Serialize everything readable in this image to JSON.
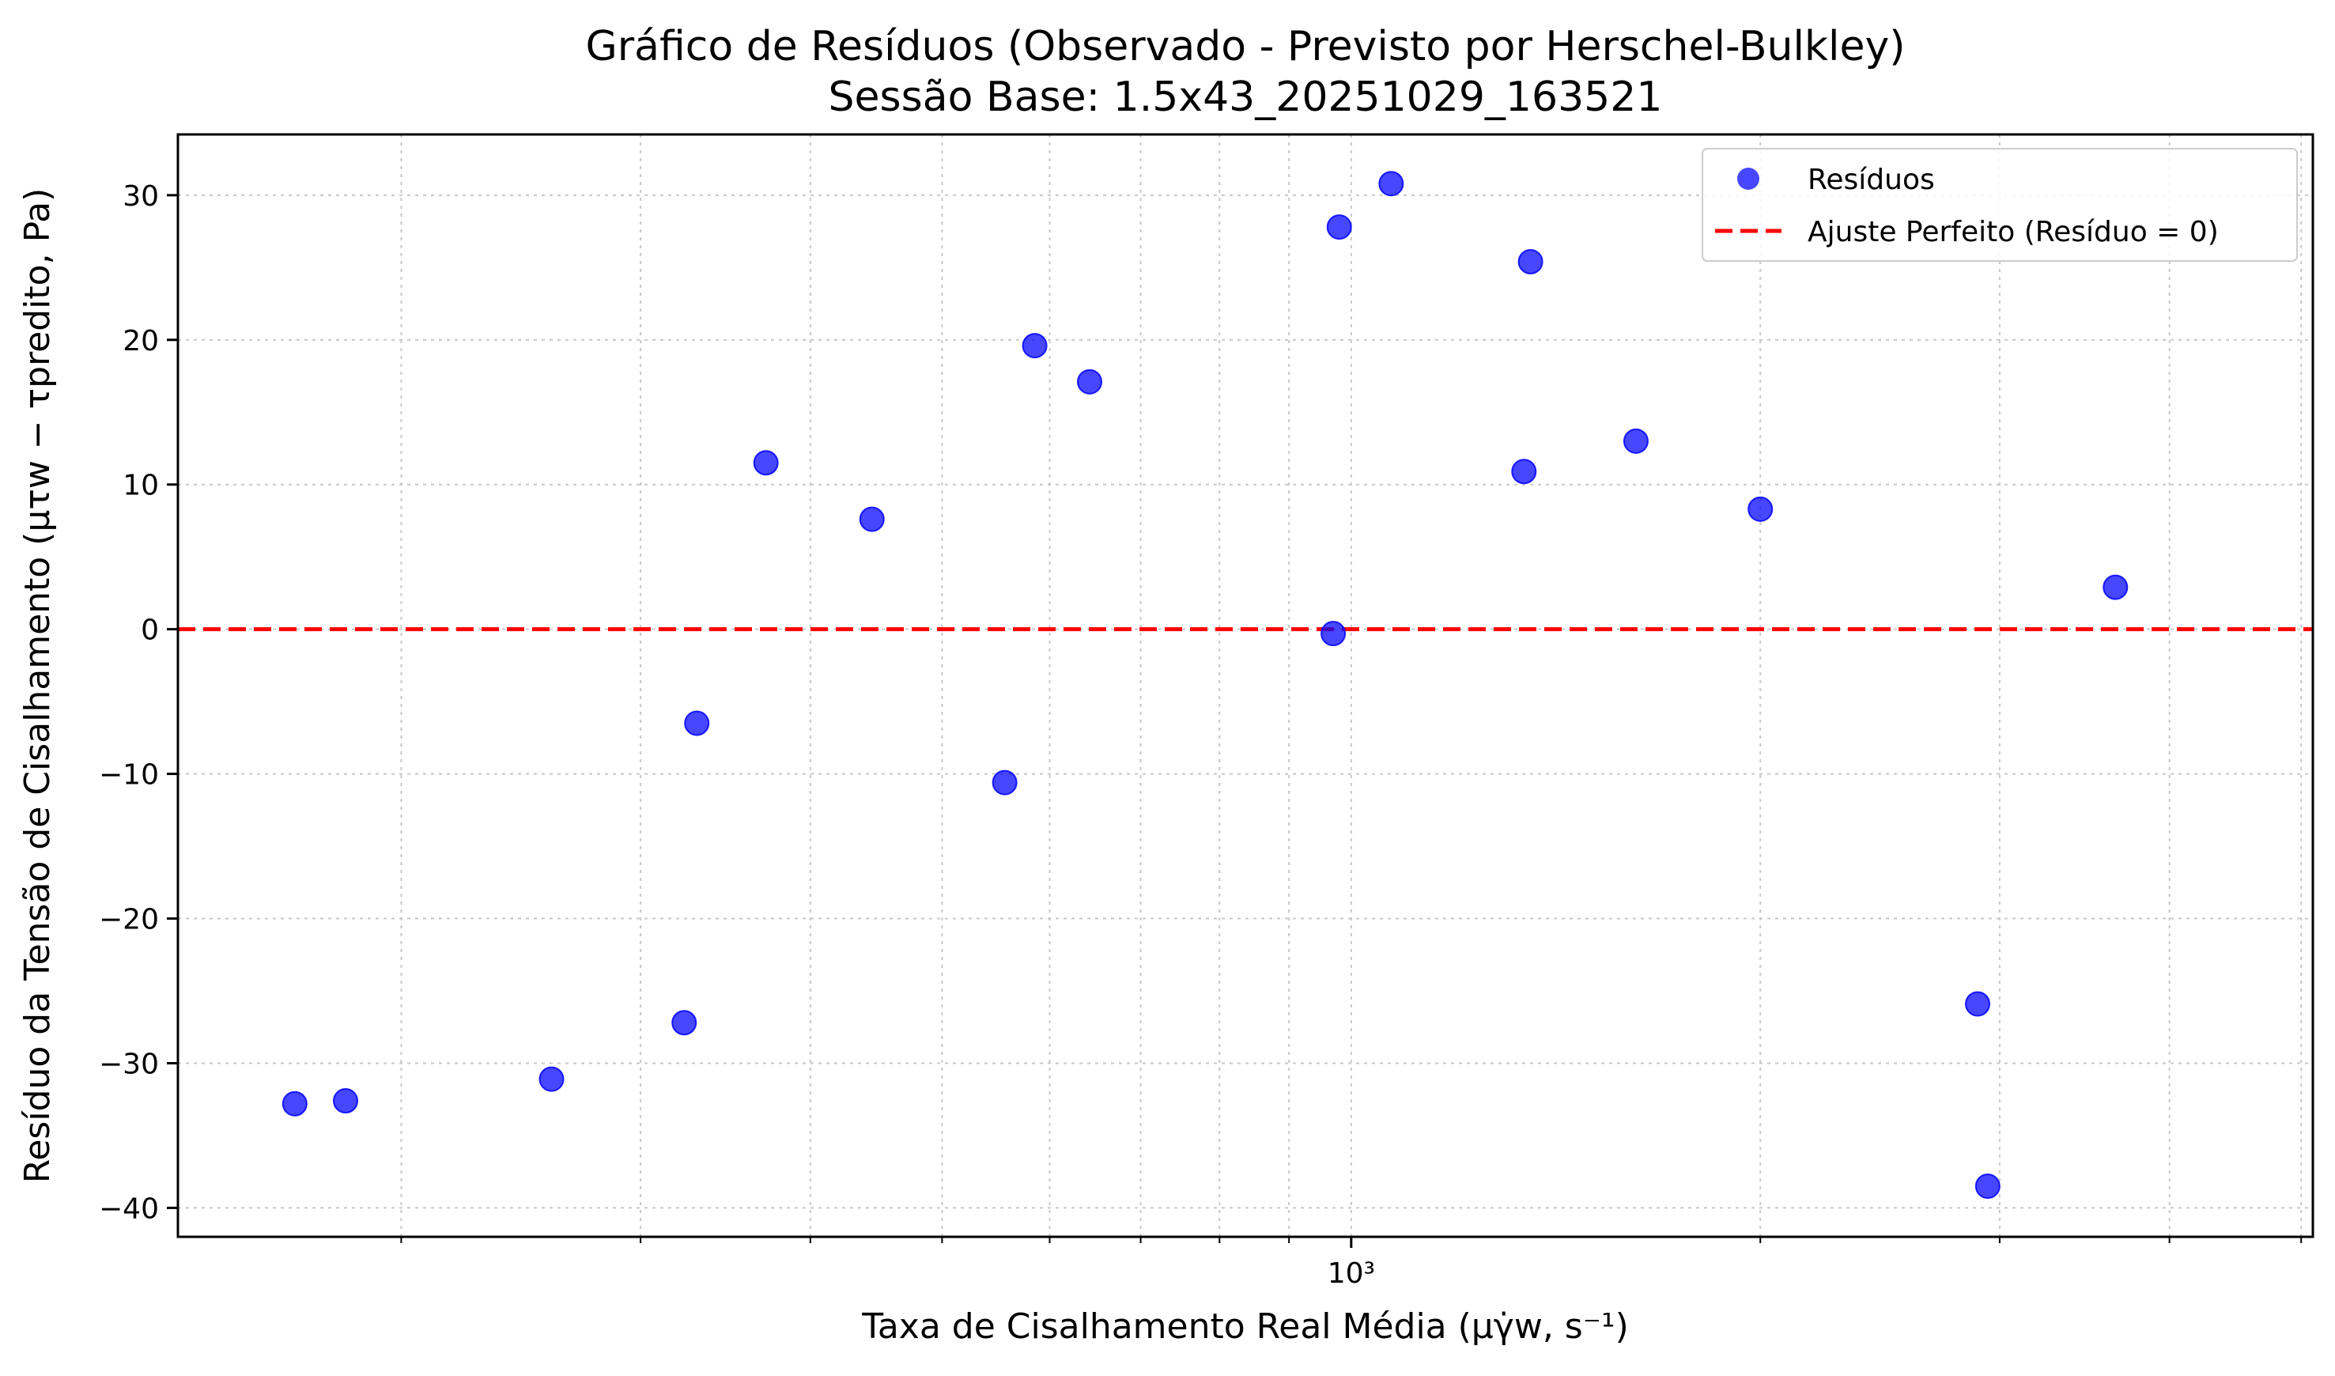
{
  "chart_data": {
    "type": "scatter",
    "title": "Gráfico de Resíduos (Observado - Previsto por Herschel-Bulkley)",
    "subtitle": "Sessão Base: 1.5x43_20251029_163521",
    "xlabel": "Taxa de Cisalhamento Real Média (μγ̇w, s⁻¹)",
    "ylabel": "Resíduo da Tensão de Cisalhamento (μτw − τpredito, Pa)",
    "x_scale": "log",
    "xlim": [
      137,
      5100
    ],
    "ylim": [
      -42,
      34.2
    ],
    "x_tick_labels": [
      "10³"
    ],
    "y_ticks": [
      30,
      20,
      10,
      0,
      -10,
      -20,
      -30,
      -40
    ],
    "y_tick_labels": [
      "30",
      "20",
      "10",
      "0",
      "−10",
      "−20",
      "−30",
      "−40"
    ],
    "grid": true,
    "legend_position": "top-right",
    "series": [
      {
        "name": "Resíduos",
        "color": "#0000ff",
        "marker": "circle",
        "points": [
          [
            167,
            -32.8
          ],
          [
            182,
            -32.6
          ],
          [
            258,
            -31.1
          ],
          [
            323,
            -27.2
          ],
          [
            330,
            -6.5
          ],
          [
            371,
            11.5
          ],
          [
            444,
            7.6
          ],
          [
            556,
            -10.6
          ],
          [
            585,
            19.6
          ],
          [
            642,
            17.1
          ],
          [
            970,
            -0.3
          ],
          [
            980,
            27.8
          ],
          [
            1070,
            30.8
          ],
          [
            1340,
            10.9
          ],
          [
            1355,
            25.4
          ],
          [
            1620,
            13.0
          ],
          [
            2000,
            8.3
          ],
          [
            2890,
            -25.9
          ],
          [
            2940,
            -38.5
          ],
          [
            3650,
            2.9
          ]
        ]
      },
      {
        "name": "Ajuste Perfeito (Resíduo = 0)",
        "color": "#ff0000",
        "style": "dashed",
        "y": 0
      }
    ]
  }
}
